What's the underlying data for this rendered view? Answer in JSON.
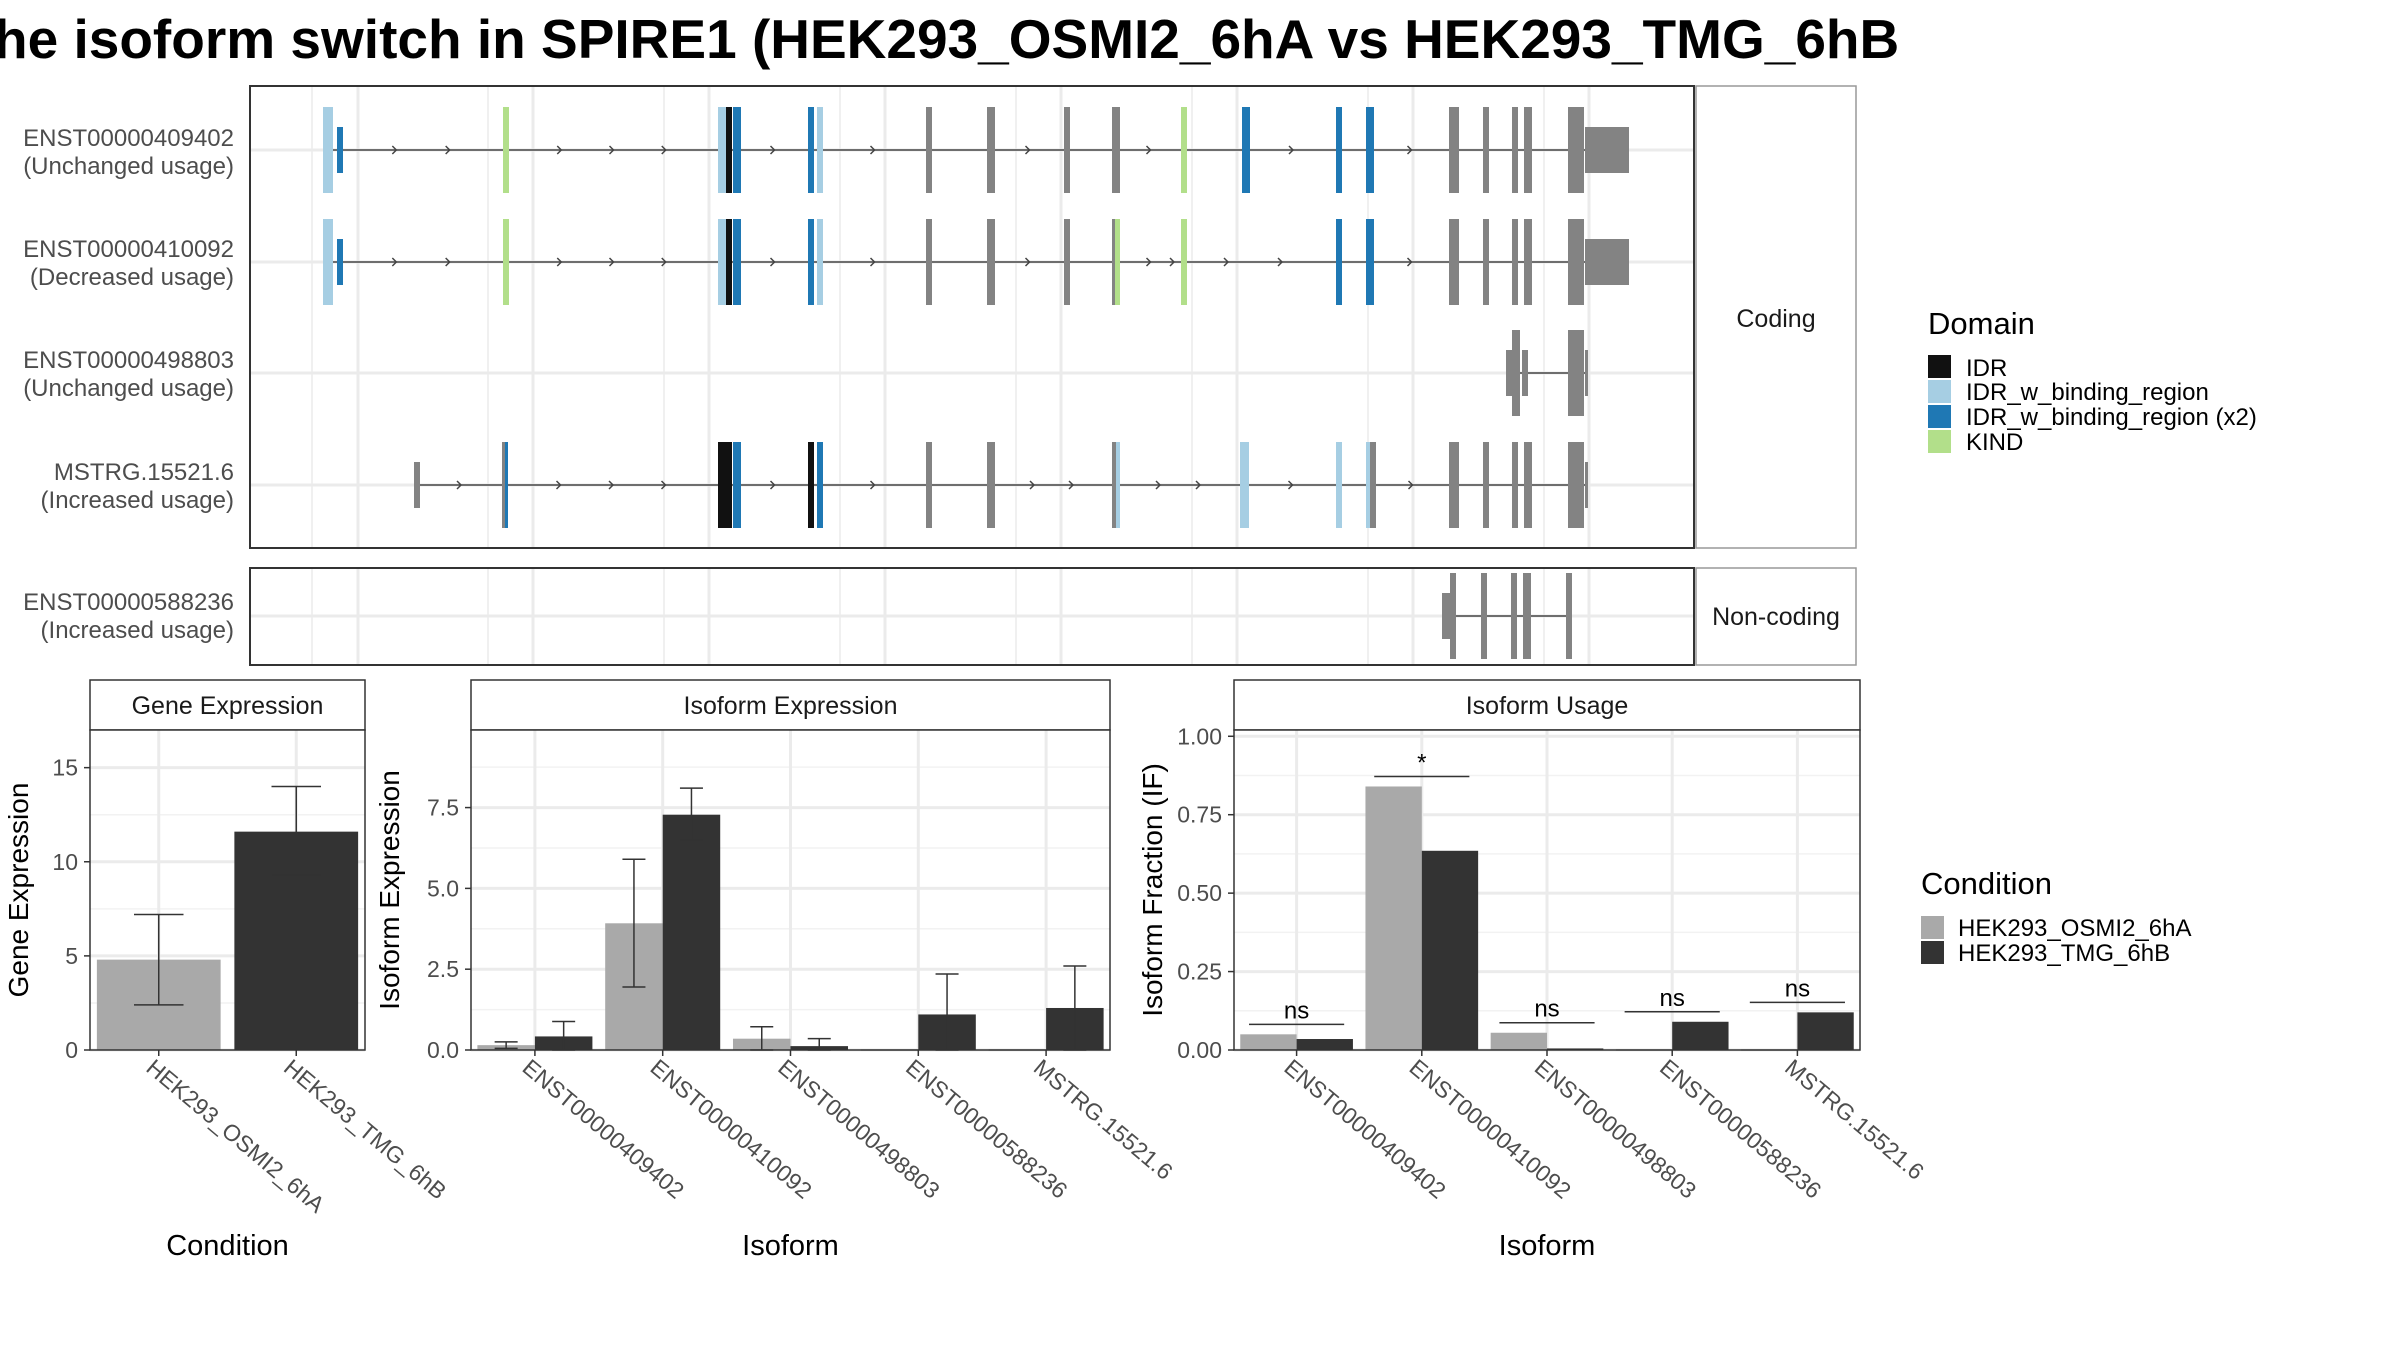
{
  "title": "he isoform switch in SPIRE1 (HEK293_OSMI2_6hA vs HEK293_TMG_6hB",
  "structure": {
    "coding_strip": "Coding",
    "noncoding_strip": "Non-coding",
    "coding_transcripts": [
      {
        "id": "ENST00000409402",
        "usage": "(Unchanged usage)"
      },
      {
        "id": "ENST00000410092",
        "usage": "(Decreased usage)"
      },
      {
        "id": "ENST00000498803",
        "usage": "(Unchanged usage)"
      },
      {
        "id": "MSTRG.15521.6",
        "usage": "(Increased usage)"
      }
    ],
    "noncoding_transcripts": [
      {
        "id": "ENST00000588236",
        "usage": "(Increased usage)"
      }
    ]
  },
  "domain_legend": {
    "title": "Domain",
    "items": [
      {
        "label": "IDR",
        "color": "#111111"
      },
      {
        "label": "IDR_w_binding_region",
        "color": "#a6cee3"
      },
      {
        "label": "IDR_w_binding_region (x2)",
        "color": "#1f78b4"
      },
      {
        "label": "KIND",
        "color": "#b2df8a"
      }
    ]
  },
  "condition_legend": {
    "title": "Condition",
    "items": [
      {
        "label": "HEK293_OSMI2_6hA",
        "color": "#a9a9a9"
      },
      {
        "label": "HEK293_TMG_6hB",
        "color": "#333333"
      }
    ]
  },
  "chart_data": [
    {
      "type": "bar",
      "title": "Gene Expression",
      "xlabel": "Condition",
      "ylabel": "Gene Expression",
      "categories": [
        "HEK293_OSMI2_6hA",
        "HEK293_TMG_6hB"
      ],
      "values": [
        4.8,
        11.6
      ],
      "errors": [
        [
          2.4,
          7.2
        ],
        [
          9.3,
          14.0
        ]
      ],
      "colors": [
        "#a9a9a9",
        "#333333"
      ],
      "ylim": [
        0,
        17
      ],
      "yticks": [
        "0",
        "5",
        "10",
        "15"
      ]
    },
    {
      "type": "bar",
      "title": "Isoform Expression",
      "xlabel": "Isoform",
      "ylabel": "Isoform Expression",
      "categories": [
        "ENST00000409402",
        "ENST00000410092",
        "ENST00000498803",
        "ENST00000588236",
        "MSTRG.15521.6"
      ],
      "series": [
        {
          "name": "HEK293_OSMI2_6hA",
          "values": [
            0.15,
            3.92,
            0.35,
            0.0,
            0.0
          ],
          "errors": [
            [
              0.05,
              0.25
            ],
            [
              1.95,
              5.9
            ],
            [
              0.0,
              0.72
            ],
            null,
            null
          ]
        },
        {
          "name": "HEK293_TMG_6hB",
          "values": [
            0.42,
            7.28,
            0.12,
            1.1,
            1.3
          ],
          "errors": [
            [
              0.0,
              0.88
            ],
            [
              6.5,
              8.1
            ],
            [
              0.0,
              0.35
            ],
            [
              0.0,
              2.35
            ],
            [
              0.0,
              2.6
            ]
          ]
        }
      ],
      "ylim": [
        0,
        9.9
      ],
      "yticks": [
        "0.0",
        "2.5",
        "5.0",
        "7.5"
      ]
    },
    {
      "type": "bar",
      "title": "Isoform Usage",
      "xlabel": "Isoform",
      "ylabel": "Isoform Fraction (IF)",
      "categories": [
        "ENST00000409402",
        "ENST00000410092",
        "ENST00000498803",
        "ENST00000588236",
        "MSTRG.15521.6"
      ],
      "series": [
        {
          "name": "HEK293_OSMI2_6hA",
          "values": [
            0.05,
            0.84,
            0.055,
            0.0,
            0.0
          ]
        },
        {
          "name": "HEK293_TMG_6hB",
          "values": [
            0.035,
            0.635,
            0.005,
            0.09,
            0.12
          ]
        }
      ],
      "significance": [
        "ns",
        "*",
        "ns",
        "ns",
        "ns"
      ],
      "ylim": [
        0,
        1.02
      ],
      "yticks": [
        "0.00",
        "0.25",
        "0.50",
        "0.75",
        "1.00"
      ]
    }
  ]
}
